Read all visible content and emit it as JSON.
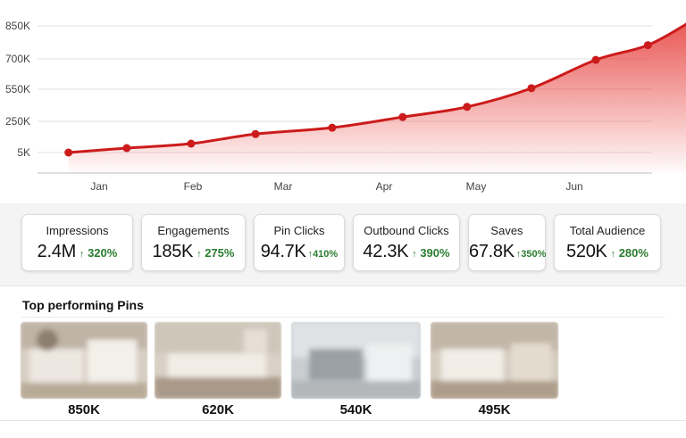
{
  "chart_data": {
    "type": "area",
    "x_ticks": [
      "Jan",
      "Feb",
      "Mar",
      "Apr",
      "May",
      "Jun"
    ],
    "y_ticks": [
      "850K",
      "700K",
      "550K",
      "250K",
      "5K"
    ],
    "points": [
      {
        "x": "Dec 22",
        "y": 5
      },
      {
        "x": "Jan 10",
        "y": 40
      },
      {
        "x": "Jan 31",
        "y": 75
      },
      {
        "x": "Feb 21",
        "y": 150
      },
      {
        "x": "Mar 15",
        "y": 200
      },
      {
        "x": "Apr 7",
        "y": 290
      },
      {
        "x": "Apr 28",
        "y": 385
      },
      {
        "x": "May 18",
        "y": 555
      },
      {
        "x": "Jun 8",
        "y": 695
      },
      {
        "x": "Jun 25",
        "y": 755
      },
      {
        "x": "Jul 8",
        "y": 850
      }
    ],
    "line_color": "#cc1b1b",
    "fill_color": "#e53935",
    "grid": true,
    "legend": "none"
  },
  "metrics": [
    {
      "label": "Impressions",
      "value": "2.4M",
      "change": "320%"
    },
    {
      "label": "Engagements",
      "value": "185K",
      "change": "275%"
    },
    {
      "label": "Pin Clicks",
      "value": "94.7K",
      "change": "410%"
    },
    {
      "label": "Outbound Clicks",
      "value": "42.3K",
      "change": "390%"
    },
    {
      "label": "Saves",
      "value": "67.8K",
      "change": "350%"
    },
    {
      "label": "Total Audience",
      "value": "520K",
      "change": "280%"
    }
  ],
  "pins": {
    "title": "Top performing Pins",
    "items": [
      {
        "value": "850K"
      },
      {
        "value": "620K"
      },
      {
        "value": "540K"
      },
      {
        "value": "495K"
      }
    ]
  },
  "colors": {
    "positive": "#2a7d2f",
    "accent": "#cc1b1b"
  }
}
